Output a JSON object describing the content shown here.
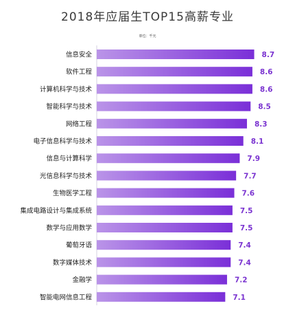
{
  "chart_data": {
    "type": "bar",
    "orientation": "horizontal",
    "title": "2018年应届生TOP15高薪专业",
    "unit": "单位：千元",
    "categories": [
      "信息安全",
      "软件工程",
      "计算机科学与技术",
      "智能科学与技术",
      "网络工程",
      "电子信息科学与技术",
      "信息与计算科学",
      "光信息科学与技术",
      "生物医学工程",
      "集成电路设计与集成系统",
      "数学与应用数学",
      "葡萄牙语",
      "数字媒体技术",
      "金融学",
      "智能电网信息工程"
    ],
    "values": [
      8.7,
      8.6,
      8.6,
      8.5,
      8.3,
      8.1,
      7.9,
      7.7,
      7.6,
      7.5,
      7.5,
      7.4,
      7.4,
      7.2,
      7.1
    ],
    "value_labels": [
      "8.7",
      "8.6",
      "8.6",
      "8.5",
      "8.3",
      "8.1",
      "7.9",
      "7.7",
      "7.6",
      "7.5",
      "7.5",
      "7.4",
      "7.4",
      "7.2",
      "7.1"
    ],
    "xlim": [
      0,
      9.4
    ],
    "grid": false,
    "legend": "none",
    "colors": {
      "bar_left": "#ba94e8",
      "bar_right": "#7a2fd8",
      "value_label": "#7a33d0",
      "category_label": "#222222",
      "title": "#3a3a3a"
    }
  }
}
